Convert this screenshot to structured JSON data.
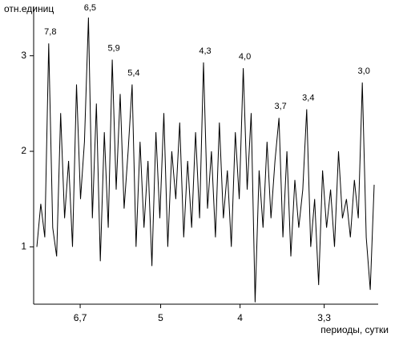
{
  "chart_data": {
    "type": "line",
    "y_label": "отн.единиц",
    "x_label": "периоды, сутки",
    "xlim": [
      0.12,
      0.337
    ],
    "ylim": [
      0.4,
      3.5
    ],
    "xticks": [
      {
        "value": 0.1493,
        "label": "6,7"
      },
      {
        "value": 0.2,
        "label": "5"
      },
      {
        "value": 0.25,
        "label": "4"
      },
      {
        "value": 0.303,
        "label": "3,3"
      }
    ],
    "yticks": [
      1,
      2,
      3
    ],
    "series": [
      {
        "color": "#000000",
        "x": [
          0.122,
          0.1245,
          0.127,
          0.1295,
          0.132,
          0.1345,
          0.137,
          0.1395,
          0.142,
          0.1445,
          0.147,
          0.1495,
          0.152,
          0.1545,
          0.157,
          0.1595,
          0.162,
          0.1645,
          0.167,
          0.1695,
          0.172,
          0.1745,
          0.177,
          0.1795,
          0.182,
          0.1845,
          0.187,
          0.1895,
          0.192,
          0.1945,
          0.197,
          0.1995,
          0.202,
          0.2045,
          0.207,
          0.2095,
          0.212,
          0.2145,
          0.217,
          0.2195,
          0.222,
          0.2245,
          0.227,
          0.2295,
          0.232,
          0.2345,
          0.237,
          0.2395,
          0.242,
          0.2445,
          0.247,
          0.2495,
          0.252,
          0.2545,
          0.257,
          0.2595,
          0.262,
          0.2645,
          0.267,
          0.2695,
          0.272,
          0.2745,
          0.277,
          0.2795,
          0.282,
          0.2845,
          0.287,
          0.2895,
          0.292,
          0.2945,
          0.297,
          0.2995,
          0.302,
          0.3045,
          0.307,
          0.3095,
          0.312,
          0.3145,
          0.317,
          0.3195,
          0.322,
          0.3245,
          0.327,
          0.3295,
          0.332,
          0.3345
        ],
        "values": [
          1.0,
          1.45,
          1.1,
          3.13,
          1.2,
          0.9,
          2.4,
          1.3,
          1.9,
          1.0,
          2.7,
          1.5,
          2.1,
          3.4,
          1.3,
          2.5,
          0.85,
          2.2,
          1.2,
          2.96,
          1.6,
          2.6,
          1.4,
          2.0,
          2.7,
          1.0,
          2.1,
          1.2,
          1.9,
          0.8,
          2.2,
          1.3,
          2.4,
          1.0,
          2.0,
          1.5,
          2.3,
          1.1,
          1.9,
          1.2,
          2.2,
          1.3,
          2.93,
          1.4,
          2.0,
          1.1,
          2.3,
          1.3,
          1.8,
          1.0,
          2.2,
          1.5,
          2.87,
          1.6,
          2.4,
          0.42,
          1.8,
          1.2,
          2.1,
          1.3,
          1.9,
          2.35,
          1.1,
          2.0,
          0.9,
          1.7,
          1.2,
          1.6,
          2.44,
          1.0,
          1.5,
          0.6,
          1.8,
          1.2,
          1.6,
          1.0,
          2.0,
          1.3,
          1.5,
          1.1,
          1.7,
          1.3,
          2.72,
          1.1,
          0.55,
          1.65
        ]
      }
    ],
    "annotations": [
      {
        "label": "7,8",
        "x": 0.1295
      },
      {
        "label": "6,5",
        "x": 0.1545
      },
      {
        "label": "5,9",
        "x": 0.1695
      },
      {
        "label": "5,4",
        "x": 0.182
      },
      {
        "label": "4,3",
        "x": 0.227
      },
      {
        "label": "4,0",
        "x": 0.252
      },
      {
        "label": "3,7",
        "x": 0.2745
      },
      {
        "label": "3,4",
        "x": 0.292
      },
      {
        "label": "3,0",
        "x": 0.327
      }
    ]
  }
}
